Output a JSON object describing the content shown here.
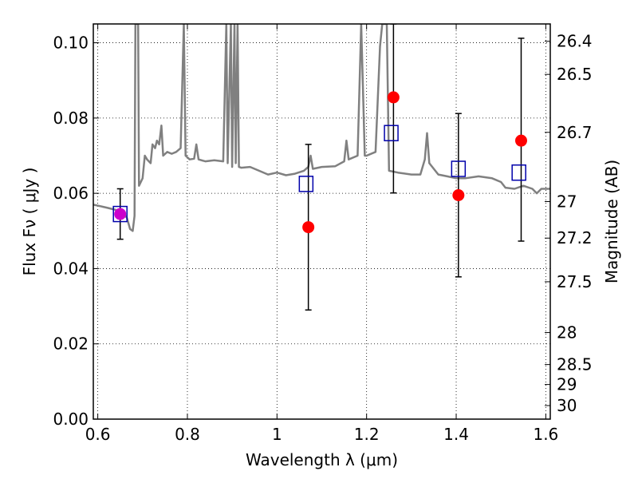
{
  "chart_data": {
    "type": "scatter",
    "xlabel": "Wavelength  λ (μm)",
    "ylabel": "Flux  Fν  ( μJy )",
    "y2label": "Magnitude (AB)",
    "xlim": [
      0.59,
      1.61
    ],
    "ylim": [
      0.0,
      0.105
    ],
    "xticks": [
      0.6,
      0.8,
      1.0,
      1.2,
      1.4,
      1.6
    ],
    "xtick_labels": [
      "0.6",
      "0.8",
      "1",
      "1.2",
      "1.4",
      "1.6"
    ],
    "yticks": [
      0.0,
      0.02,
      0.04,
      0.06,
      0.08,
      0.1
    ],
    "ytick_labels": [
      "0.00",
      "0.02",
      "0.04",
      "0.06",
      "0.08",
      "0.10"
    ],
    "y2ticks": [
      {
        "label": "26.4",
        "flux": 0.1004
      },
      {
        "label": "26.5",
        "flux": 0.0916
      },
      {
        "label": "26.7",
        "flux": 0.0762
      },
      {
        "label": "27",
        "flux": 0.0578
      },
      {
        "label": "27.2",
        "flux": 0.0481
      },
      {
        "label": "27.5",
        "flux": 0.0365
      },
      {
        "label": "28",
        "flux": 0.023
      },
      {
        "label": "28.5",
        "flux": 0.0145
      },
      {
        "label": "29",
        "flux": 0.0092
      },
      {
        "label": "30",
        "flux": 0.0036
      }
    ],
    "grid": true,
    "series": [
      {
        "kind": "line",
        "color": "#808080",
        "points": [
          [
            0.59,
            0.057
          ],
          [
            0.62,
            0.0562
          ],
          [
            0.64,
            0.0556
          ],
          [
            0.655,
            0.055
          ],
          [
            0.665,
            0.0535
          ],
          [
            0.672,
            0.0505
          ],
          [
            0.678,
            0.05
          ],
          [
            0.682,
            0.054
          ],
          [
            0.684,
            0.105
          ],
          [
            0.69,
            0.105
          ],
          [
            0.692,
            0.062
          ],
          [
            0.7,
            0.064
          ],
          [
            0.705,
            0.07
          ],
          [
            0.71,
            0.069
          ],
          [
            0.718,
            0.068
          ],
          [
            0.722,
            0.073
          ],
          [
            0.728,
            0.072
          ],
          [
            0.732,
            0.074
          ],
          [
            0.737,
            0.073
          ],
          [
            0.742,
            0.078
          ],
          [
            0.746,
            0.07
          ],
          [
            0.755,
            0.071
          ],
          [
            0.765,
            0.0705
          ],
          [
            0.775,
            0.071
          ],
          [
            0.785,
            0.072
          ],
          [
            0.792,
            0.105
          ],
          [
            0.796,
            0.07
          ],
          [
            0.805,
            0.069
          ],
          [
            0.815,
            0.0692
          ],
          [
            0.82,
            0.073
          ],
          [
            0.825,
            0.069
          ],
          [
            0.84,
            0.0685
          ],
          [
            0.86,
            0.0688
          ],
          [
            0.88,
            0.0685
          ],
          [
            0.887,
            0.105
          ],
          [
            0.89,
            0.068
          ],
          [
            0.897,
            0.105
          ],
          [
            0.9,
            0.067
          ],
          [
            0.905,
            0.105
          ],
          [
            0.908,
            0.068
          ],
          [
            0.912,
            0.105
          ],
          [
            0.915,
            0.067
          ],
          [
            0.92,
            0.0668
          ],
          [
            0.94,
            0.067
          ],
          [
            0.96,
            0.066
          ],
          [
            0.98,
            0.065
          ],
          [
            1.0,
            0.0655
          ],
          [
            1.02,
            0.0648
          ],
          [
            1.04,
            0.0652
          ],
          [
            1.06,
            0.066
          ],
          [
            1.07,
            0.067
          ],
          [
            1.075,
            0.07
          ],
          [
            1.08,
            0.0665
          ],
          [
            1.1,
            0.067
          ],
          [
            1.13,
            0.0672
          ],
          [
            1.15,
            0.0685
          ],
          [
            1.155,
            0.074
          ],
          [
            1.16,
            0.069
          ],
          [
            1.18,
            0.07
          ],
          [
            1.188,
            0.105
          ],
          [
            1.196,
            0.07
          ],
          [
            1.2,
            0.07
          ],
          [
            1.22,
            0.071
          ],
          [
            1.23,
            0.099
          ],
          [
            1.235,
            0.105
          ],
          [
            1.245,
            0.105
          ],
          [
            1.25,
            0.066
          ],
          [
            1.27,
            0.0655
          ],
          [
            1.3,
            0.065
          ],
          [
            1.32,
            0.065
          ],
          [
            1.33,
            0.069
          ],
          [
            1.335,
            0.076
          ],
          [
            1.34,
            0.068
          ],
          [
            1.36,
            0.065
          ],
          [
            1.38,
            0.0645
          ],
          [
            1.4,
            0.064
          ],
          [
            1.42,
            0.064
          ],
          [
            1.45,
            0.0645
          ],
          [
            1.48,
            0.064
          ],
          [
            1.5,
            0.063
          ],
          [
            1.51,
            0.0615
          ],
          [
            1.53,
            0.0612
          ],
          [
            1.55,
            0.062
          ],
          [
            1.57,
            0.0612
          ],
          [
            1.58,
            0.06
          ],
          [
            1.59,
            0.0612
          ],
          [
            1.61,
            0.0612
          ]
        ]
      },
      {
        "kind": "errorbar",
        "color": "#000000",
        "points": [
          {
            "x": 0.65,
            "y": 0.0545,
            "lo": 0.0478,
            "hi": 0.0612
          },
          {
            "x": 1.07,
            "y": 0.051,
            "lo": 0.029,
            "hi": 0.073
          },
          {
            "x": 1.26,
            "y": 0.0855,
            "lo": 0.0601,
            "hi": 0.105
          },
          {
            "x": 1.405,
            "y": 0.0595,
            "lo": 0.0378,
            "hi": 0.0812
          },
          {
            "x": 1.545,
            "y": 0.074,
            "lo": 0.0473,
            "hi": 0.1012
          }
        ]
      },
      {
        "kind": "points",
        "marker": "circle",
        "color": "#ff0000",
        "points": [
          [
            0.65,
            0.0545
          ],
          [
            1.07,
            0.051
          ],
          [
            1.26,
            0.0855
          ],
          [
            1.405,
            0.0595
          ],
          [
            1.545,
            0.074
          ]
        ]
      },
      {
        "kind": "points",
        "marker": "square",
        "color": "#0000aa",
        "points": [
          [
            0.65,
            0.0545
          ],
          [
            1.065,
            0.0625
          ],
          [
            1.255,
            0.076
          ],
          [
            1.405,
            0.0665
          ],
          [
            1.54,
            0.0655
          ]
        ]
      }
    ],
    "overlap_color": "#cc00cc"
  }
}
